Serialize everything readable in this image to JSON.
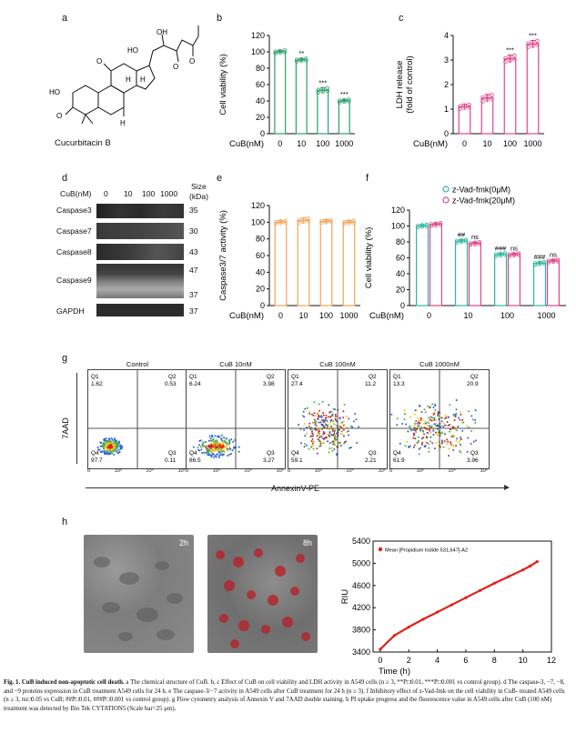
{
  "panel_letters": [
    "a",
    "b",
    "c",
    "d",
    "e",
    "f",
    "g",
    "h"
  ],
  "panel_a": {
    "compound_name": "Cucurbitacin B",
    "atom_labels": [
      "HO",
      "O",
      "HO",
      "OH",
      "O",
      "O",
      "O",
      "H",
      "H",
      "H"
    ]
  },
  "chart_data": [
    {
      "id": "b",
      "type": "bar",
      "categories": [
        "0",
        "10",
        "100",
        "1000"
      ],
      "values": [
        100,
        90,
        53,
        40
      ],
      "errors": [
        2,
        2,
        3,
        2
      ],
      "significance": [
        "",
        "**",
        "***",
        "***"
      ],
      "xlabel": "CuB(nM)",
      "ylabel": "Cell viability (%)",
      "ylim": [
        0,
        120
      ],
      "yticks": [
        0,
        20,
        40,
        60,
        80,
        100,
        120
      ],
      "color": "#2e9e6b"
    },
    {
      "id": "c",
      "type": "bar",
      "categories": [
        "0",
        "10",
        "100",
        "1000"
      ],
      "values": [
        1.1,
        1.45,
        3.05,
        3.65
      ],
      "errors": [
        0.1,
        0.15,
        0.15,
        0.15
      ],
      "significance": [
        "",
        "",
        "***",
        "***"
      ],
      "xlabel": "CuB(nM)",
      "ylabel": "LDH release (fold of control)",
      "ylabel_lines": [
        "LDH release",
        "(fold of control)"
      ],
      "ylim": [
        0,
        4
      ],
      "yticks": [
        0,
        1,
        2,
        3,
        4
      ],
      "color": "#e0468a"
    },
    {
      "id": "e",
      "type": "bar",
      "categories": [
        "0",
        "10",
        "100",
        "1000"
      ],
      "values": [
        100,
        102,
        101,
        100
      ],
      "errors": [
        2,
        3,
        2,
        2
      ],
      "xlabel": "CuB(nM)",
      "ylabel": "Caspase3/7 activity (%)",
      "ylim": [
        0,
        120
      ],
      "yticks": [
        0,
        20,
        40,
        60,
        80,
        100,
        120
      ],
      "color": "#f2a45a"
    },
    {
      "id": "f",
      "type": "bar",
      "categories": [
        "0",
        "10",
        "100",
        "1000"
      ],
      "series": [
        {
          "name": "z-Vad-fmk(0μM)",
          "values": [
            100,
            81,
            64,
            53
          ],
          "color": "#2eb8a0"
        },
        {
          "name": "z-Vad-fmk(20μM)",
          "values": [
            102,
            78,
            64,
            56
          ],
          "color": "#e0468a"
        }
      ],
      "significance_series1": [
        "",
        "##",
        "###",
        "###"
      ],
      "significance_series2": [
        "",
        "ns",
        "ns",
        "ns"
      ],
      "xlabel": "CuB(nM)",
      "ylabel": "Cell viability (%)",
      "ylim": [
        0,
        120
      ],
      "yticks": [
        0,
        20,
        40,
        60,
        80,
        100,
        120
      ],
      "legend_position": "top-right"
    },
    {
      "id": "h",
      "type": "line",
      "series": [
        {
          "name": "Mean [Propidium Iodide 531,647]-A2",
          "color": "#e0201b",
          "x": [
            0,
            1,
            2,
            3,
            4,
            5,
            6,
            7,
            8,
            9,
            10,
            10.5,
            11
          ],
          "y": [
            3450,
            3700,
            3850,
            3990,
            4120,
            4250,
            4380,
            4510,
            4640,
            4760,
            4880,
            4950,
            5030
          ]
        }
      ],
      "xlabel": "Time  (h)",
      "ylabel": "RIU",
      "xlim": [
        -0.5,
        12
      ],
      "xticks": [
        0,
        2,
        4,
        6,
        8,
        10,
        12
      ],
      "ylim": [
        3400,
        5400
      ],
      "yticks": [
        3400,
        3800,
        4200,
        4600,
        5000,
        5400
      ]
    }
  ],
  "panel_d": {
    "header_label": "CuB(nM)",
    "lanes": [
      "0",
      "10",
      "100",
      "1000"
    ],
    "size_header": [
      "Size",
      "(kDa)"
    ],
    "rows": [
      {
        "label": "Caspase3",
        "size": "35"
      },
      {
        "label": "Caspase7",
        "size": "30"
      },
      {
        "label": "Caspase8",
        "size": "43"
      },
      {
        "label": "Caspase9",
        "size": "47",
        "size2": "37"
      },
      {
        "label": "GAPDH",
        "size": "37"
      }
    ]
  },
  "panel_g": {
    "plots": [
      {
        "title": "Control",
        "q1": "1.62",
        "q2": "0.53",
        "q3": "0.11",
        "q4": "97.7"
      },
      {
        "title": "CuB 10nM",
        "q1": "6.24",
        "q2": "3.98",
        "q3": "3.27",
        "q4": "86.5"
      },
      {
        "title": "CuB 100nM",
        "q1": "27.4",
        "q2": "11.2",
        "q3": "2.21",
        "q4": "59.1"
      },
      {
        "title": "CuB 1000nM",
        "q1": "13.3",
        "q2": "20.9",
        "q3": "3.96",
        "q4": "61.9"
      }
    ],
    "quadrant_names": [
      "Q1",
      "Q2",
      "Q3",
      "Q4"
    ],
    "x_axis": "AnnexinV-PE",
    "y_axis": "7AAD",
    "tick_labels": [
      "0",
      "10³",
      "10⁴",
      "10⁵"
    ]
  },
  "panel_h": {
    "image_labels": [
      "2h",
      "8h"
    ]
  },
  "caption": {
    "figure_label": "Fig. 1.",
    "title": "CuB induced non-apoptotic cell death.",
    "body": "a The chemical structure of CuB. b, c Effect of CuB on cell viability and LDH activity in A549 cells (n ≥ 3, **P□0.01, ***P□0.001 vs control group). d The caspase-3, −7, −8, and −9 proteins expression in CuB treatment A549 cells for 24 h. e The caspase-3/−7 activity in A549 cells after CuB treatment for 24 h (n ≥ 3). f Inhibitory effect of z-Vad-fmk on the cell viability in CuB- treated A549 cells (n ≥ 3, ns□0.05 vs CuB; ##P□0.01, ###P□0.001 vs control group). g Flow cytometry analysis of Annexin V and 7AAD double staining. h PI uptake progress and the fluorescence value in A549 cells after CuB (100 nM) treatment was detected by Bio Tek CYTATION5 (Scale bar=25 μm)."
  }
}
